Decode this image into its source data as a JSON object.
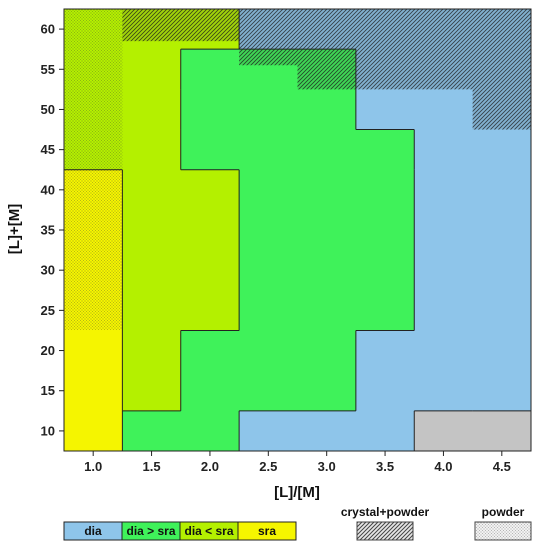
{
  "chart_data": {
    "type": "heatmap",
    "title": "",
    "xlabel": "[L]/[M]",
    "ylabel": "[L]+[M]",
    "xlim": [
      0.75,
      4.75
    ],
    "ylim": [
      7.5,
      62.5
    ],
    "x_ticks": [
      "1.0",
      "1.5",
      "2.0",
      "2.5",
      "3.0",
      "3.5",
      "4.0",
      "4.5"
    ],
    "y_ticks": [
      "10",
      "15",
      "20",
      "25",
      "30",
      "35",
      "40",
      "45",
      "50",
      "55",
      "60"
    ],
    "x_bins": [
      0.75,
      1.25,
      1.75,
      2.25,
      2.75,
      3.25,
      3.75,
      4.25,
      4.75
    ],
    "y_bins": [
      7.5,
      12.5,
      17.5,
      22.5,
      42.5,
      47.5,
      52.5,
      57.5,
      62.5
    ],
    "rows_from_top": [
      [
        "dia < sra",
        "dia < sra",
        "dia < sra",
        "dia",
        "dia",
        "dia",
        "dia",
        "dia"
      ],
      [
        "dia < sra",
        "dia < sra",
        "dia > sra",
        "dia > sra",
        "dia > sra",
        "dia",
        "dia",
        "dia"
      ],
      [
        "dia < sra",
        "dia < sra",
        "dia > sra",
        "dia > sra",
        "dia > sra",
        "dia",
        "dia",
        "dia"
      ],
      [
        "dia < sra",
        "dia < sra",
        "dia > sra",
        "dia > sra",
        "dia > sra",
        "dia > sra",
        "dia",
        "dia"
      ],
      [
        "sra",
        "dia < sra",
        "dia < sra",
        "dia > sra",
        "dia > sra",
        "dia > sra",
        "dia",
        "dia"
      ],
      [
        "sra",
        "dia < sra",
        "dia > sra",
        "dia > sra",
        "dia > sra",
        "dia",
        "dia",
        "dia"
      ],
      [
        "sra",
        "dia > sra",
        "dia > sra",
        "dia",
        "dia",
        "dia",
        "powder",
        "powder"
      ]
    ],
    "row_ranges_from_top": [
      [
        57.5,
        62.5
      ],
      [
        52.5,
        57.5
      ],
      [
        47.5,
        52.5
      ],
      [
        42.5,
        47.5
      ],
      [
        22.5,
        42.5
      ],
      [
        12.5,
        22.5
      ],
      [
        7.5,
        12.5
      ]
    ],
    "overlays": [
      {
        "type": "crystal+powder",
        "x": [
          0.75,
          1.25
        ],
        "y": [
          22.5,
          62.5
        ]
      },
      {
        "type": "crystal+powder",
        "x": [
          1.25,
          2.25
        ],
        "y": [
          58.5,
          62.5
        ]
      },
      {
        "type": "crystal+powder",
        "x": [
          2.25,
          4.75
        ],
        "y": [
          55.5,
          62.5
        ]
      },
      {
        "type": "crystal+powder",
        "x": [
          2.75,
          4.75
        ],
        "y": [
          52.5,
          55.5
        ]
      },
      {
        "type": "crystal+powder",
        "x": [
          4.25,
          4.75
        ],
        "y": [
          47.5,
          52.5
        ]
      }
    ],
    "legend": {
      "items": [
        {
          "label": "dia",
          "color": "#8ec5ea"
        },
        {
          "label": "dia > sra",
          "color": "#3ff25a"
        },
        {
          "label": "dia < sra",
          "color": "#b4f000"
        },
        {
          "label": "sra",
          "color": "#f5f500"
        }
      ],
      "patterns": [
        {
          "label": "crystal+powder",
          "fill": "hatched"
        },
        {
          "label": "powder",
          "fill": "stippled"
        }
      ],
      "placement": "bottom"
    },
    "category_colors": {
      "dia": "#8ec5ea",
      "dia > sra": "#3ff25a",
      "dia < sra": "#b4f000",
      "sra": "#f5f500",
      "powder": "#c4c4c4"
    },
    "grid": false
  }
}
